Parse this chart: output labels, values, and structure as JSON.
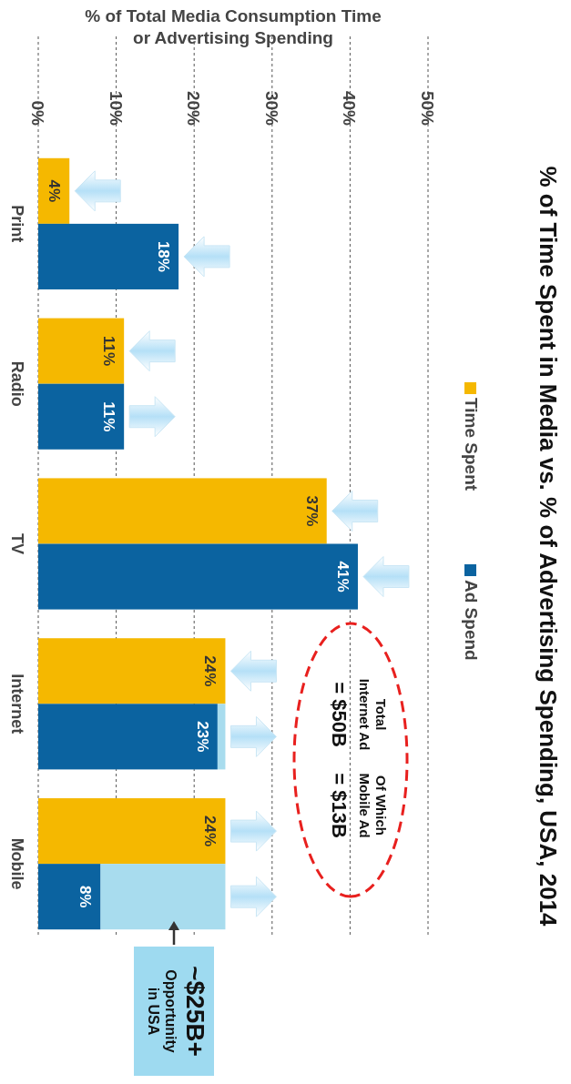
{
  "chart_data": {
    "type": "bar",
    "title": "% of Time Spent in Media vs. % of Advertising Spending, USA, 2014",
    "orientation": "horizontal",
    "xlabel": "% of Total Media Consumption Time\nor Advertising Spending",
    "categories": [
      "Print",
      "Radio",
      "TV",
      "Internet",
      "Mobile"
    ],
    "series": [
      {
        "name": "Time Spent",
        "color": "#f5b800",
        "values": [
          4,
          11,
          37,
          24,
          24
        ],
        "value_labels": [
          "4%",
          "11%",
          "37%",
          "24%",
          "24%"
        ]
      },
      {
        "name": "Ad Spend",
        "color": "#0b63a0",
        "values": [
          18,
          11,
          41,
          23,
          8
        ],
        "value_labels": [
          "18%",
          "11%",
          "41%",
          "23%",
          "8%"
        ]
      },
      {
        "color": "#a8dcee",
        "values": [
          null,
          null,
          null,
          1,
          16
        ],
        "base": [
          null,
          null,
          null,
          23,
          8
        ]
      }
    ],
    "xlim": [
      0,
      50
    ],
    "xticks": [
      {
        "value": 0,
        "label": "0%"
      },
      {
        "value": 10,
        "label": "10%"
      },
      {
        "value": 20,
        "label": "20%"
      },
      {
        "value": 30,
        "label": "30%"
      },
      {
        "value": 40,
        "label": "40%"
      },
      {
        "value": 50,
        "label": "50%"
      }
    ],
    "grid": "x",
    "legend": "right",
    "annotations": [
      "Total\nInternet Ad\n= $50B",
      "Of Which\nMobile Ad\n= $13B",
      "~$25B+\nOpportunity\nin USA"
    ]
  }
}
